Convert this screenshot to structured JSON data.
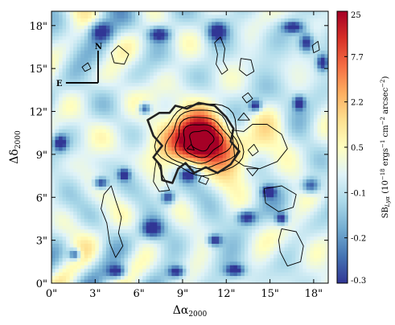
{
  "chart_data": {
    "type": "heatmap",
    "title": "",
    "xlabel": "Δα",
    "xlabel_sub": "2000",
    "ylabel": "Δδ",
    "ylabel_sub": "2000",
    "xlim": [
      0,
      19
    ],
    "ylim": [
      0,
      19
    ],
    "x_ticks": [
      0,
      3,
      6,
      9,
      12,
      15,
      18
    ],
    "x_tick_labels": [
      "0\"",
      "3\"",
      "6\"",
      "9\"",
      "12\"",
      "15\"",
      "18\""
    ],
    "y_ticks": [
      0,
      3,
      6,
      9,
      12,
      15,
      18
    ],
    "y_tick_labels": [
      "0\"",
      "3\"",
      "6\"",
      "9\"",
      "12\"",
      "15\"",
      "18\""
    ],
    "colorbar": {
      "label_main": "SB",
      "label_sub": "Lyα",
      "label_units": "(10",
      "label_exp1": "−18",
      "label_units2": "ergs",
      "label_exp2": "−1",
      "label_units3": "cm",
      "label_exp3": "−2",
      "label_units4": "arcsec",
      "label_exp4": "−2",
      "label_close": ")",
      "tick_labels": [
        "25",
        "7.7",
        "2.2",
        "0.5",
        "-0.1",
        "-0.2",
        "-0.3"
      ],
      "colormap": "RdYlBu_r",
      "colors": [
        "#313695",
        "#4575b4",
        "#74add1",
        "#abd9e9",
        "#e0f3f8",
        "#ffffbf",
        "#fee090",
        "#fdae61",
        "#f46d43",
        "#d73027",
        "#a50026"
      ]
    },
    "source": {
      "x": 10.3,
      "y": 10.0,
      "peak": 25
    },
    "blobs": [
      {
        "x": 10.3,
        "y": 10.0,
        "sx": 1.2,
        "sy": 1.0,
        "amp": 1.0
      },
      {
        "x": 9.2,
        "y": 10.5,
        "sx": 1.8,
        "sy": 1.5,
        "amp": 0.45
      },
      {
        "x": 11.8,
        "y": 8.8,
        "sx": 1.6,
        "sy": 1.2,
        "amp": 0.25
      },
      {
        "x": 13.8,
        "y": 9.4,
        "sx": 1.2,
        "sy": 1.0,
        "amp": 0.16
      },
      {
        "x": 16.0,
        "y": 9.4,
        "sx": 1.4,
        "sy": 1.0,
        "amp": 0.1
      },
      {
        "x": 18.0,
        "y": 2.2,
        "sx": 1.0,
        "sy": 1.4,
        "amp": 0.16
      },
      {
        "x": 3.2,
        "y": 9.8,
        "sx": 1.8,
        "sy": 1.4,
        "amp": 0.08
      },
      {
        "x": 7.0,
        "y": 14.5,
        "sx": 1.6,
        "sy": 1.2,
        "amp": 0.07
      },
      {
        "x": 2.5,
        "y": 4.0,
        "sx": 1.8,
        "sy": 1.8,
        "amp": 0.06
      }
    ],
    "holes": [
      {
        "x": 3.4,
        "y": 17.6,
        "sx": 1.0,
        "sy": 0.9
      },
      {
        "x": 7.4,
        "y": 17.4,
        "sx": 0.9,
        "sy": 0.6
      },
      {
        "x": 11.4,
        "y": 17.6,
        "sx": 0.8,
        "sy": 0.8
      },
      {
        "x": 16.6,
        "y": 17.9,
        "sx": 0.9,
        "sy": 0.5
      },
      {
        "x": 17.5,
        "y": 16.8,
        "sx": 0.6,
        "sy": 0.8
      },
      {
        "x": 18.6,
        "y": 15.4,
        "sx": 0.5,
        "sy": 0.7
      },
      {
        "x": 0.6,
        "y": 9.8,
        "sx": 0.6,
        "sy": 0.7
      },
      {
        "x": 3.4,
        "y": 7.0,
        "sx": 0.6,
        "sy": 0.5
      },
      {
        "x": 5.0,
        "y": 7.6,
        "sx": 0.5,
        "sy": 0.5
      },
      {
        "x": 8.0,
        "y": 6.0,
        "sx": 0.6,
        "sy": 0.6
      },
      {
        "x": 9.4,
        "y": 7.6,
        "sx": 0.7,
        "sy": 0.6
      },
      {
        "x": 6.9,
        "y": 3.8,
        "sx": 0.9,
        "sy": 0.8
      },
      {
        "x": 4.5,
        "y": 0.8,
        "sx": 0.8,
        "sy": 0.6
      },
      {
        "x": 8.6,
        "y": 0.8,
        "sx": 0.7,
        "sy": 0.5
      },
      {
        "x": 12.6,
        "y": 0.9,
        "sx": 0.8,
        "sy": 0.5
      },
      {
        "x": 13.4,
        "y": 4.6,
        "sx": 0.8,
        "sy": 0.6
      },
      {
        "x": 11.2,
        "y": 3.0,
        "sx": 0.6,
        "sy": 0.5
      },
      {
        "x": 14.9,
        "y": 6.4,
        "sx": 0.6,
        "sy": 0.5
      },
      {
        "x": 17.8,
        "y": 6.8,
        "sx": 0.8,
        "sy": 0.7
      },
      {
        "x": 15.8,
        "y": 4.5,
        "sx": 0.5,
        "sy": 0.5
      },
      {
        "x": 1.6,
        "y": 2.0,
        "sx": 0.5,
        "sy": 0.5
      },
      {
        "x": 14.0,
        "y": 12.4,
        "sx": 0.5,
        "sy": 0.5
      },
      {
        "x": 17.0,
        "y": 12.6,
        "sx": 0.5,
        "sy": 0.6
      },
      {
        "x": 6.4,
        "y": 12.2,
        "sx": 0.5,
        "sy": 0.5
      }
    ],
    "contour_levels": [
      {
        "r": 0.7,
        "width": 1.0
      },
      {
        "r": 1.15,
        "width": 1.0
      },
      {
        "r": 1.6,
        "width": 1.0
      },
      {
        "r": 2.05,
        "width": 1.0
      },
      {
        "r": 2.5,
        "width": 1.0
      }
    ],
    "thick_contour": [
      [
        6.6,
        11.4
      ],
      [
        7.4,
        11.9
      ],
      [
        8.1,
        11.9
      ],
      [
        8.5,
        12.4
      ],
      [
        9.3,
        12.2
      ],
      [
        10.1,
        12.6
      ],
      [
        11.2,
        12.4
      ],
      [
        12.0,
        11.6
      ],
      [
        12.5,
        10.8
      ],
      [
        12.3,
        9.9
      ],
      [
        12.9,
        9.2
      ],
      [
        12.3,
        8.3
      ],
      [
        11.4,
        7.7
      ],
      [
        10.6,
        8.1
      ],
      [
        9.8,
        7.7
      ],
      [
        9.2,
        8.4
      ],
      [
        8.7,
        8.0
      ],
      [
        8.3,
        7.0
      ],
      [
        7.6,
        7.2
      ],
      [
        7.5,
        8.2
      ],
      [
        7.0,
        8.8
      ],
      [
        7.6,
        9.6
      ],
      [
        7.0,
        10.3
      ],
      [
        6.6,
        11.4
      ]
    ],
    "thin_contours": [
      [
        [
          12.4,
          10.7
        ],
        [
          13.2,
          10.6
        ],
        [
          13.8,
          11.1
        ],
        [
          14.8,
          11.1
        ],
        [
          15.8,
          10.4
        ],
        [
          16.2,
          9.4
        ],
        [
          15.5,
          8.5
        ],
        [
          14.3,
          8.0
        ],
        [
          13.2,
          8.2
        ],
        [
          12.6,
          8.6
        ]
      ],
      [
        [
          7.2,
          8.6
        ],
        [
          7.6,
          7.6
        ],
        [
          7.9,
          7.0
        ],
        [
          8.1,
          6.5
        ],
        [
          7.4,
          6.4
        ],
        [
          7.0,
          7.1
        ],
        [
          7.1,
          8.0
        ]
      ],
      [
        [
          4.1,
          16.1
        ],
        [
          4.6,
          16.6
        ],
        [
          5.3,
          16.0
        ],
        [
          5.0,
          15.3
        ],
        [
          4.3,
          15.4
        ]
      ],
      [
        [
          11.2,
          16.8
        ],
        [
          11.6,
          17.2
        ],
        [
          11.9,
          16.4
        ],
        [
          11.8,
          15.5
        ],
        [
          12.1,
          14.9
        ],
        [
          11.7,
          14.6
        ],
        [
          11.3,
          15.3
        ],
        [
          11.4,
          16.0
        ]
      ],
      [
        [
          13.0,
          15.7
        ],
        [
          13.7,
          15.6
        ],
        [
          13.9,
          14.8
        ],
        [
          13.4,
          14.5
        ],
        [
          12.9,
          14.9
        ]
      ],
      [
        [
          3.6,
          6.2
        ],
        [
          4.1,
          6.8
        ],
        [
          4.4,
          5.8
        ],
        [
          4.8,
          4.6
        ],
        [
          4.6,
          3.5
        ],
        [
          4.9,
          2.6
        ],
        [
          4.4,
          1.8
        ],
        [
          4.0,
          2.8
        ],
        [
          3.8,
          4.2
        ],
        [
          3.4,
          5.2
        ]
      ],
      [
        [
          14.6,
          6.6
        ],
        [
          15.8,
          6.8
        ],
        [
          16.8,
          6.2
        ],
        [
          16.6,
          5.3
        ],
        [
          15.6,
          5.0
        ],
        [
          14.7,
          5.6
        ]
      ],
      [
        [
          15.8,
          3.8
        ],
        [
          16.8,
          3.6
        ],
        [
          17.3,
          2.6
        ],
        [
          17.1,
          1.5
        ],
        [
          16.2,
          1.2
        ],
        [
          15.7,
          2.2
        ],
        [
          15.6,
          3.0
        ]
      ],
      [
        [
          12.8,
          11.4
        ],
        [
          13.2,
          11.9
        ],
        [
          13.6,
          11.4
        ]
      ],
      [
        [
          13.4,
          8.0
        ],
        [
          13.8,
          7.5
        ],
        [
          14.2,
          8.0
        ]
      ],
      [
        [
          13.5,
          9.3
        ],
        [
          13.9,
          9.7
        ],
        [
          14.2,
          9.2
        ],
        [
          13.8,
          8.9
        ]
      ],
      [
        [
          10.3,
          7.5
        ],
        [
          10.8,
          7.3
        ],
        [
          10.6,
          6.9
        ],
        [
          10.1,
          7.1
        ]
      ],
      [
        [
          13.1,
          13.0
        ],
        [
          13.5,
          13.3
        ],
        [
          13.8,
          12.9
        ],
        [
          13.4,
          12.6
        ]
      ],
      [
        [
          2.1,
          15.1
        ],
        [
          2.5,
          15.4
        ],
        [
          2.7,
          15.0
        ],
        [
          2.3,
          14.8
        ]
      ],
      [
        [
          17.9,
          16.6
        ],
        [
          18.3,
          16.9
        ],
        [
          18.4,
          16.3
        ],
        [
          18.0,
          16.1
        ]
      ],
      [
        [
          9.3,
          9.4
        ],
        [
          9.6,
          9.7
        ],
        [
          9.8,
          9.3
        ]
      ]
    ],
    "compass": {
      "north_label": "N",
      "east_label": "E"
    }
  }
}
